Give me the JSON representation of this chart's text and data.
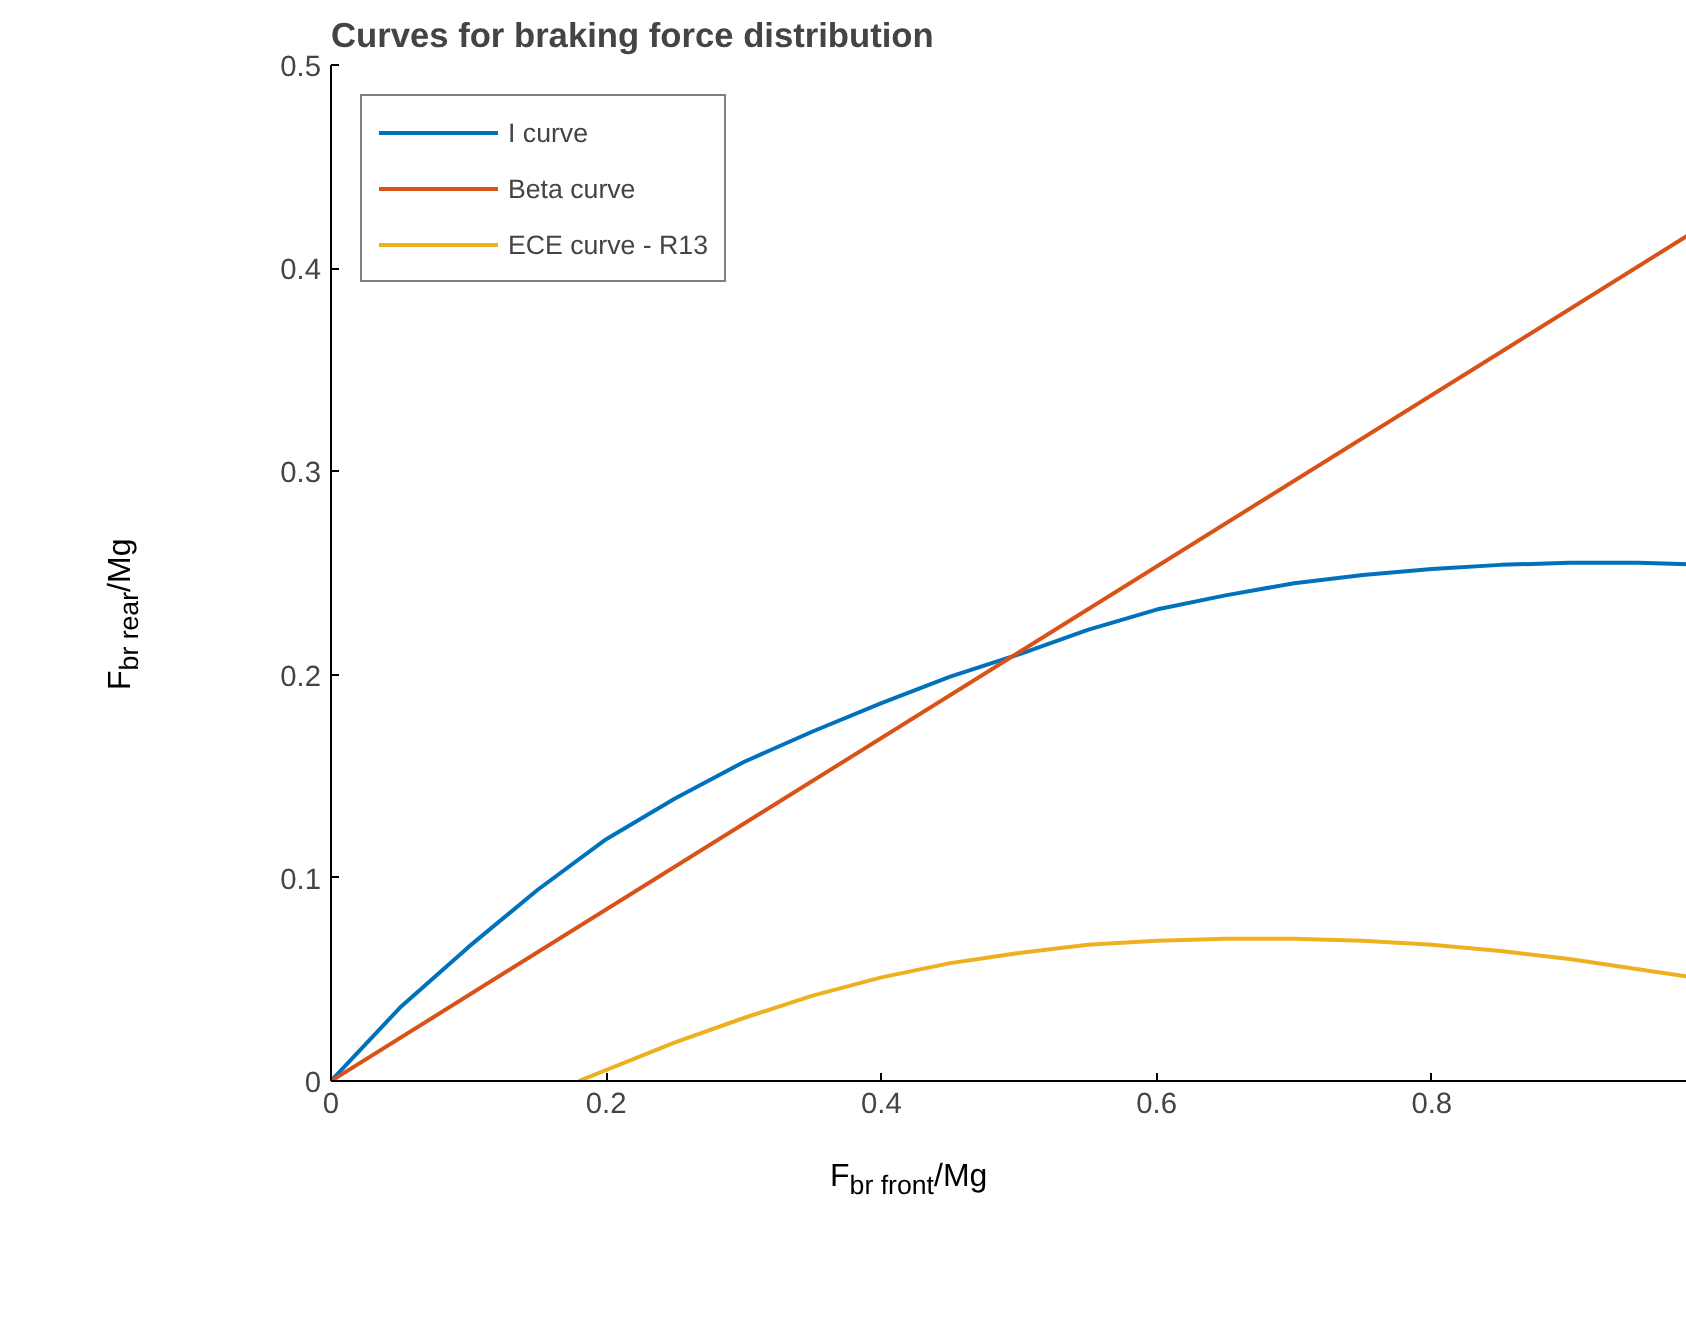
{
  "chart_data": {
    "type": "line",
    "title": "Curves for braking force distribution",
    "xlabel": "F$_{br front}$/Mg",
    "ylabel": "F$_{br rear}$/Mg",
    "xlim": [
      0,
      1
    ],
    "ylim": [
      0,
      0.5
    ],
    "xticks": [
      0,
      0.2,
      0.4,
      0.6,
      0.8
    ],
    "yticks": [
      0,
      0.1,
      0.2,
      0.3,
      0.4,
      0.5
    ],
    "grid": false,
    "legend": "top left",
    "series": [
      {
        "name": "I curve",
        "color": "#0072bd",
        "x": [
          0,
          0.05,
          0.1,
          0.15,
          0.2,
          0.25,
          0.3,
          0.35,
          0.4,
          0.45,
          0.5,
          0.55,
          0.6,
          0.65,
          0.7,
          0.75,
          0.8,
          0.85,
          0.9,
          0.95,
          1.0
        ],
        "values": [
          0,
          0.036,
          0.066,
          0.094,
          0.119,
          0.139,
          0.157,
          0.172,
          0.186,
          0.199,
          0.21,
          0.222,
          0.232,
          0.239,
          0.245,
          0.249,
          0.252,
          0.254,
          0.255,
          0.255,
          0.254
        ]
      },
      {
        "name": "Beta curve",
        "color": "#d95319",
        "x": [
          0,
          1
        ],
        "values": [
          0,
          0.422
        ]
      },
      {
        "name": "ECE curve - R13",
        "color": "#edb120",
        "x": [
          0.18,
          0.25,
          0.3,
          0.35,
          0.4,
          0.45,
          0.5,
          0.55,
          0.6,
          0.65,
          0.7,
          0.75,
          0.8,
          0.85,
          0.9,
          0.95,
          1.0
        ],
        "values": [
          0,
          0.019,
          0.031,
          0.042,
          0.051,
          0.058,
          0.063,
          0.067,
          0.069,
          0.07,
          0.07,
          0.069,
          0.067,
          0.064,
          0.06,
          0.055,
          0.05
        ]
      }
    ]
  }
}
